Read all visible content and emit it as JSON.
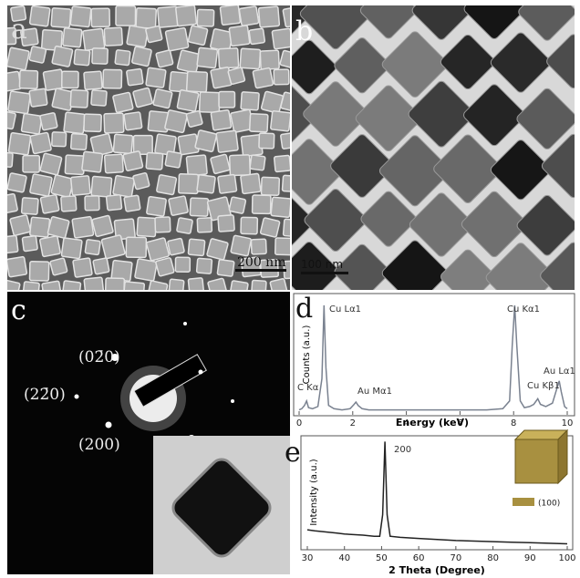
{
  "panels": {
    "a": {
      "label": "a",
      "scale_bar": "200 nm"
    },
    "b": {
      "label": "b",
      "scale_bar": "100 nm"
    },
    "c": {
      "label": "c",
      "spots": [
        "(02̄0)",
        "(22̄0)",
        "(200)"
      ]
    },
    "d": {
      "label": "d"
    },
    "e": {
      "label": "e"
    }
  },
  "chart_data": [
    {
      "type": "line",
      "xlabel": "Energy (keV)",
      "ylabel": "Counts (a.u.)",
      "annotations": [
        "Cu Lα1",
        "C Kα",
        "Au Mα1",
        "Cu Kα1",
        "Cu Kβ1",
        "Au Lα1"
      ],
      "x": [
        0,
        0.1,
        0.2,
        0.28,
        0.35,
        0.5,
        0.7,
        0.85,
        0.93,
        1.0,
        1.1,
        1.3,
        1.6,
        1.9,
        2.05,
        2.12,
        2.2,
        2.35,
        2.6,
        3,
        4,
        5,
        6,
        7,
        7.6,
        7.85,
        7.95,
        8.04,
        8.12,
        8.25,
        8.4,
        8.6,
        8.75,
        8.9,
        9.0,
        9.2,
        9.45,
        9.6,
        9.7,
        9.78,
        9.9,
        10
      ],
      "values": [
        2,
        3,
        6,
        10,
        4,
        3,
        5,
        30,
        96,
        40,
        6,
        3,
        2,
        3,
        7,
        9,
        6,
        3,
        2,
        2,
        2,
        2,
        2,
        2,
        3,
        10,
        60,
        96,
        60,
        10,
        4,
        5,
        7,
        12,
        7,
        5,
        8,
        20,
        28,
        18,
        5,
        3
      ],
      "color": "#7a8290",
      "xlim": [
        0,
        10
      ],
      "xticks": [
        0,
        2,
        4,
        6,
        8,
        10
      ],
      "ylim": [
        0,
        100
      ]
    },
    {
      "type": "line",
      "xlabel": "2 Theta (Degree)",
      "ylabel": "Intensity (a.u.)",
      "annotations": [
        "200"
      ],
      "inset_legend": "(100)",
      "x": [
        30,
        32,
        35,
        38,
        40,
        45,
        48,
        49.5,
        50.3,
        50.9,
        51.5,
        52.3,
        55,
        60,
        65,
        70,
        75,
        80,
        85,
        90,
        95,
        100
      ],
      "values": [
        0.16,
        0.15,
        0.14,
        0.13,
        0.12,
        0.11,
        0.1,
        0.1,
        0.3,
        0.98,
        0.3,
        0.1,
        0.09,
        0.08,
        0.07,
        0.06,
        0.055,
        0.05,
        0.045,
        0.04,
        0.035,
        0.03
      ],
      "color": "#222222",
      "xlim": [
        30,
        100
      ],
      "xticks": [
        30,
        40,
        50,
        60,
        70,
        80,
        90,
        100
      ],
      "ylim": [
        0,
        1
      ]
    }
  ]
}
